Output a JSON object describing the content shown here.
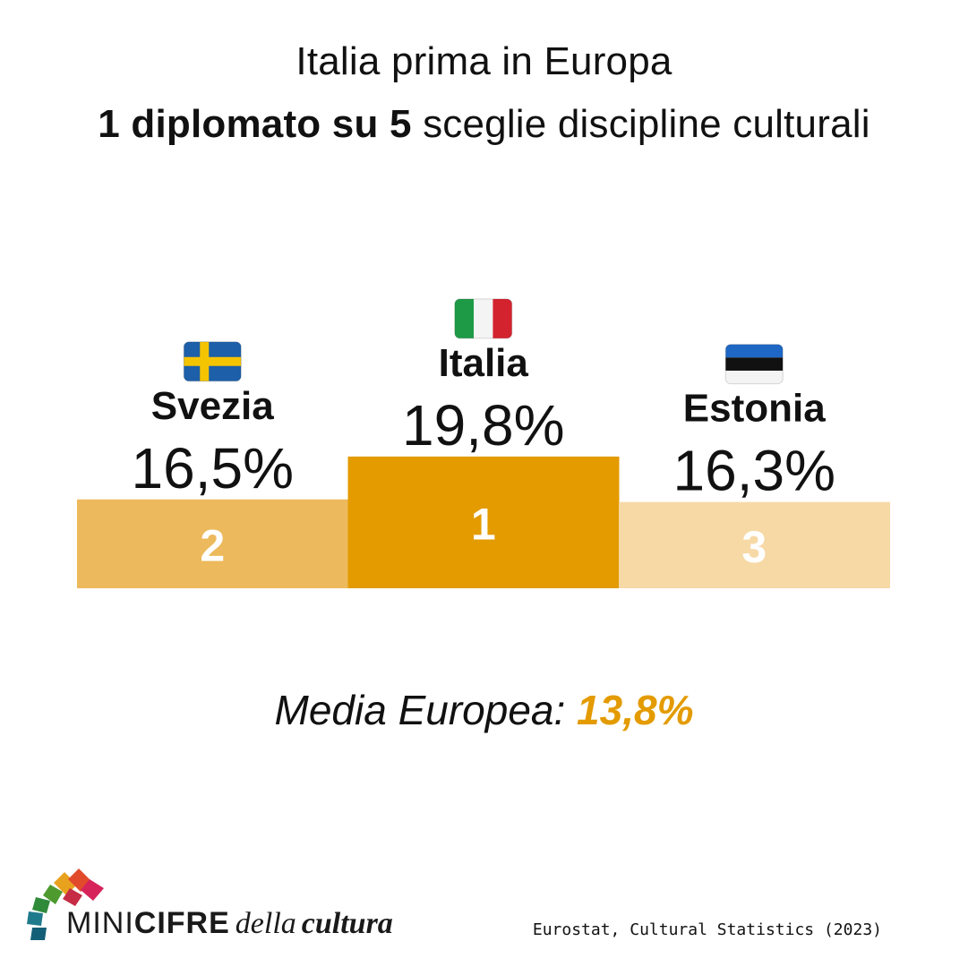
{
  "header": {
    "title_line1": "Italia prima in Europa",
    "title_line2_bold": "1 diplomato su 5",
    "title_line2_rest": " sceglie discipline culturali"
  },
  "chart_data": {
    "type": "bar",
    "style": "podium",
    "categories": [
      "Svezia",
      "Italia",
      "Estonia"
    ],
    "values": [
      16.5,
      19.8,
      16.3
    ],
    "value_labels": [
      "16,5%",
      "19,8%",
      "16,3%"
    ],
    "ranks": [
      "2",
      "1",
      "3"
    ],
    "flags": [
      "sweden-flag-icon",
      "italy-flag-icon",
      "estonia-flag-icon"
    ],
    "colors": [
      "#ECB95C",
      "#E39B00",
      "#F7D9A6"
    ],
    "unit": "%"
  },
  "average": {
    "label": "Media Europea:",
    "value": "13,8%"
  },
  "logo": {
    "mini": "MINI",
    "cifre": "CIFRE",
    "della": "della",
    "cultura": "cultura"
  },
  "source": "Eurostat, Cultural Statistics (2023)"
}
